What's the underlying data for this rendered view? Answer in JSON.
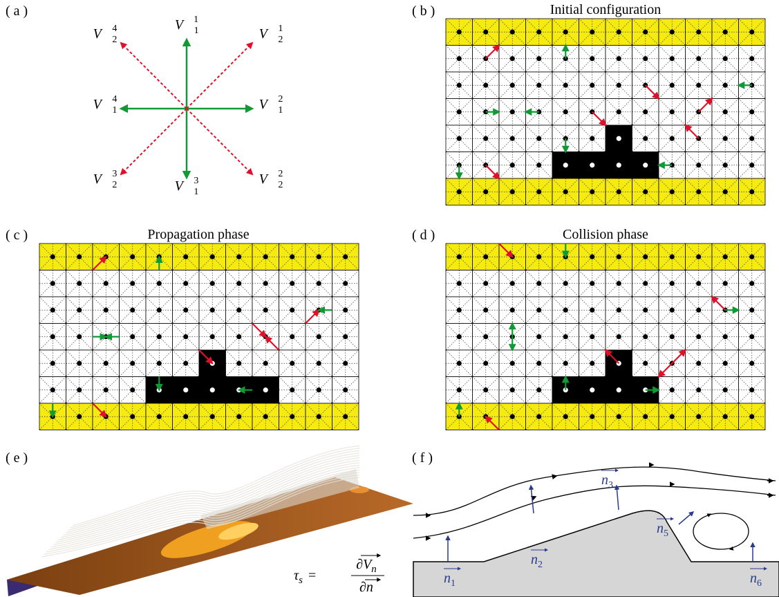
{
  "panels": {
    "a": {
      "label": "( a )",
      "vectors": [
        {
          "base": "V⃗",
          "sub": "1",
          "sup": "1"
        },
        {
          "base": "V⃗",
          "sub": "2",
          "sup": "1"
        },
        {
          "base": "V⃗",
          "sub": "1",
          "sup": "2"
        },
        {
          "base": "V⃗",
          "sub": "2",
          "sup": "2"
        },
        {
          "base": "V⃗",
          "sub": "1",
          "sup": "3"
        },
        {
          "base": "V⃗",
          "sub": "2",
          "sup": "3"
        },
        {
          "base": "V⃗",
          "sub": "1",
          "sup": "4"
        },
        {
          "base": "V⃗",
          "sub": "2",
          "sup": "4"
        }
      ]
    },
    "b": {
      "label": "( b )",
      "title": "Initial configuration"
    },
    "c": {
      "label": "( c )",
      "title": "Propagation phase"
    },
    "d": {
      "label": "( d )",
      "title": "Collision phase"
    },
    "e": {
      "label": "( e )",
      "equation": {
        "lhs": "τ",
        "lhs_sub": "s",
        "equals": "=",
        "num": "∂V",
        "num_sub": "n",
        "den": "∂n"
      }
    },
    "f": {
      "label": "( f )",
      "normals": [
        {
          "base": "n",
          "sub": "1"
        },
        {
          "base": "n",
          "sub": "2"
        },
        {
          "base": "n",
          "sub": "3"
        },
        {
          "base": "n",
          "sub": "5"
        },
        {
          "base": "n",
          "sub": "6"
        }
      ]
    }
  }
}
